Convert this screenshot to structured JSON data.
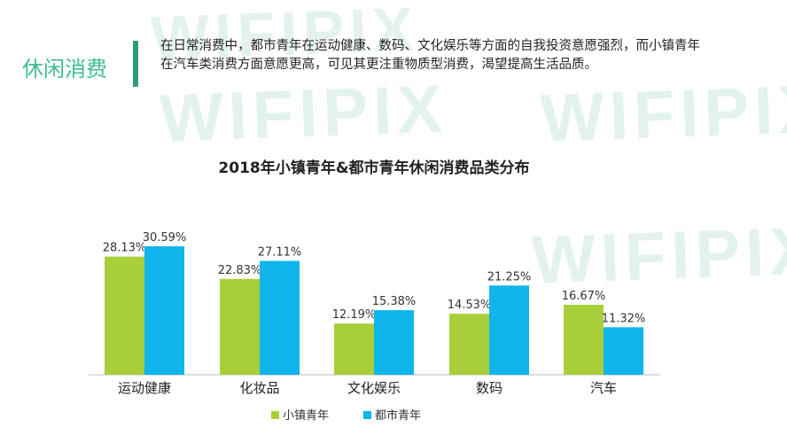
{
  "watermark": "WIFIPIX",
  "section": {
    "title": "休闲消费",
    "intro": "在日常消费中，都市青年在运动健康、数码、文化娱乐等方面的自我投资意愿强烈，而小镇青年在汽车类消费方面意愿更高，可见其更注重物质型消费，渴望提高生活品质。"
  },
  "colors": {
    "town": "#a8cf3a",
    "city": "#10b5ec",
    "accent": "#3dbd8e",
    "bar": "#2e9e7a"
  },
  "chart_data": {
    "type": "bar",
    "title": "2018年小镇青年&都市青年休闲消费品类分布",
    "categories": [
      "运动健康",
      "化妆品",
      "文化娱乐",
      "数码",
      "汽车"
    ],
    "series": [
      {
        "name": "小镇青年",
        "values": [
          28.13,
          22.83,
          12.19,
          14.53,
          16.67
        ],
        "labels": [
          "28.13%",
          "22.83%",
          "12.19%",
          "14.53%",
          "16.67%"
        ]
      },
      {
        "name": "都市青年",
        "values": [
          30.59,
          27.11,
          15.38,
          21.25,
          11.32
        ],
        "labels": [
          "30.59%",
          "27.11%",
          "15.38%",
          "21.25%",
          "11.32%"
        ]
      }
    ],
    "ylim": [
      0,
      30.59
    ],
    "legend": "bottom-center",
    "grid": false
  }
}
